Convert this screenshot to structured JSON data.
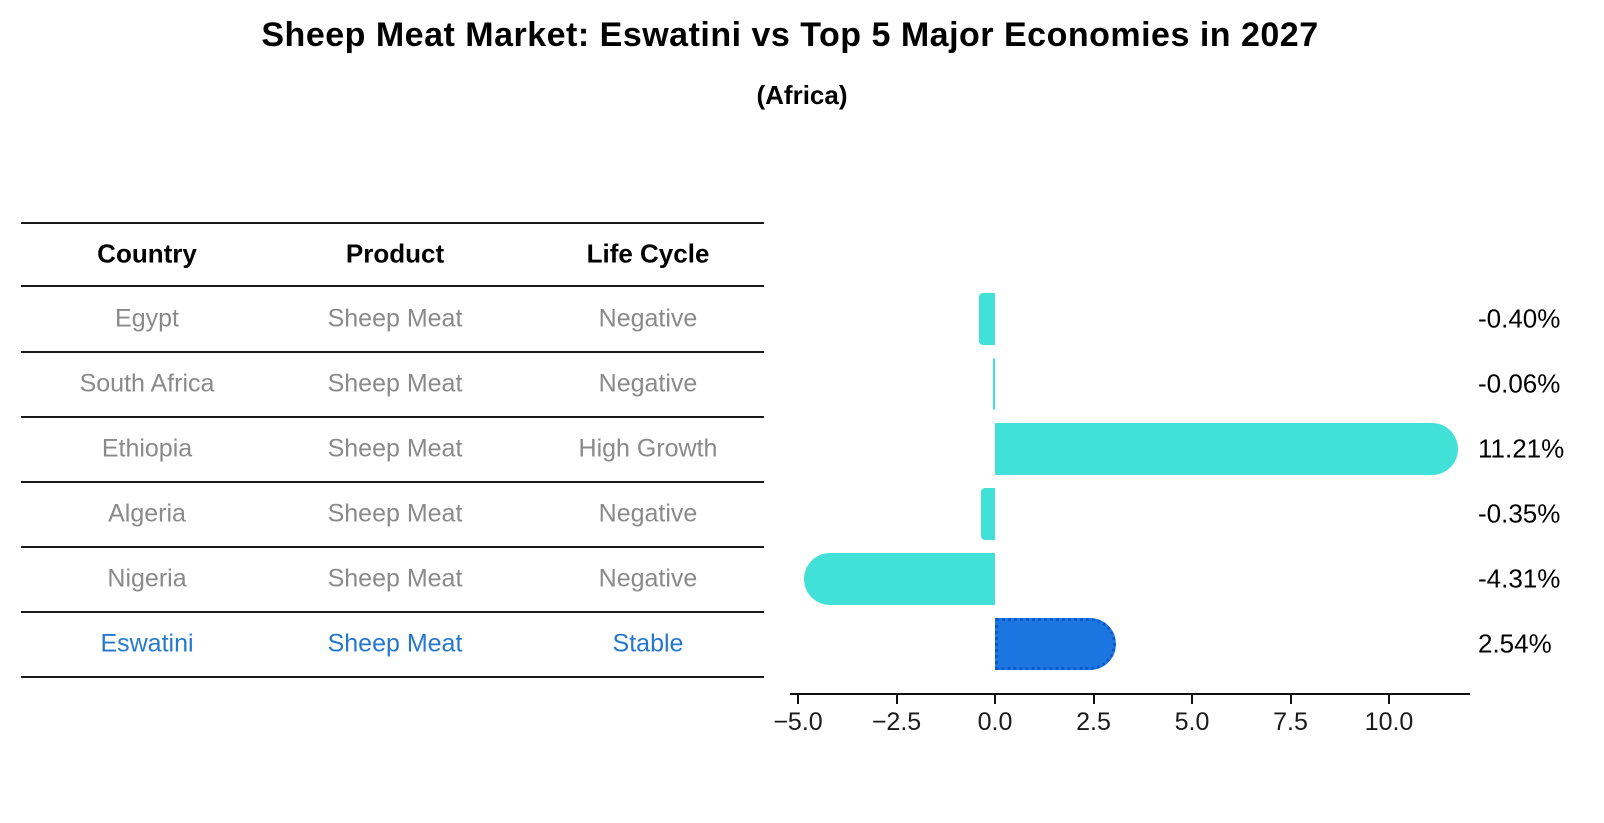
{
  "title": "Sheep Meat Market: Eswatini vs Top 5 Major Economies in 2027",
  "subtitle": "(Africa)",
  "table": {
    "headers": [
      "Country",
      "Product",
      "Life Cycle"
    ],
    "rows": [
      {
        "country": "Egypt",
        "product": "Sheep Meat",
        "life_cycle": "Negative",
        "highlight": false
      },
      {
        "country": "South Africa",
        "product": "Sheep Meat",
        "life_cycle": "Negative",
        "highlight": false
      },
      {
        "country": "Ethiopia",
        "product": "Sheep Meat",
        "life_cycle": "High Growth",
        "highlight": false
      },
      {
        "country": "Algeria",
        "product": "Sheep Meat",
        "life_cycle": "Negative",
        "highlight": false
      },
      {
        "country": "Nigeria",
        "product": "Sheep Meat",
        "life_cycle": "Negative",
        "highlight": false
      },
      {
        "country": "Eswatini",
        "product": "Sheep Meat",
        "life_cycle": "Stable",
        "highlight": true
      }
    ]
  },
  "chart_data": {
    "type": "bar",
    "orientation": "horizontal",
    "title": "Sheep Meat Market: Eswatini vs Top 5 Major Economies in 2027",
    "subtitle": "(Africa)",
    "categories": [
      "Egypt",
      "South Africa",
      "Ethiopia",
      "Algeria",
      "Nigeria",
      "Eswatini"
    ],
    "values": [
      -0.4,
      -0.06,
      11.21,
      -0.35,
      -4.31,
      2.54
    ],
    "value_labels": [
      "-0.40%",
      "-0.06%",
      "11.21%",
      "-0.35%",
      "-4.31%",
      "2.54%"
    ],
    "unit": "%",
    "x_ticks": [
      -5.0,
      -2.5,
      0.0,
      2.5,
      5.0,
      7.5,
      10.0
    ],
    "x_tick_labels": [
      "−5.0",
      "−2.5",
      "0.0",
      "2.5",
      "5.0",
      "7.5",
      "10.0"
    ],
    "xlim": [
      -5.2,
      12.0
    ],
    "grid": false,
    "legend": "none",
    "highlight_index": 5,
    "colors": {
      "bar": "#41e1d7",
      "highlight_bar": "#1c76e2",
      "highlight_border": "#0c5bcb",
      "highlight_text": "#2478cf",
      "row_text": "#8a8a8a",
      "line": "#1a1a1a"
    }
  }
}
